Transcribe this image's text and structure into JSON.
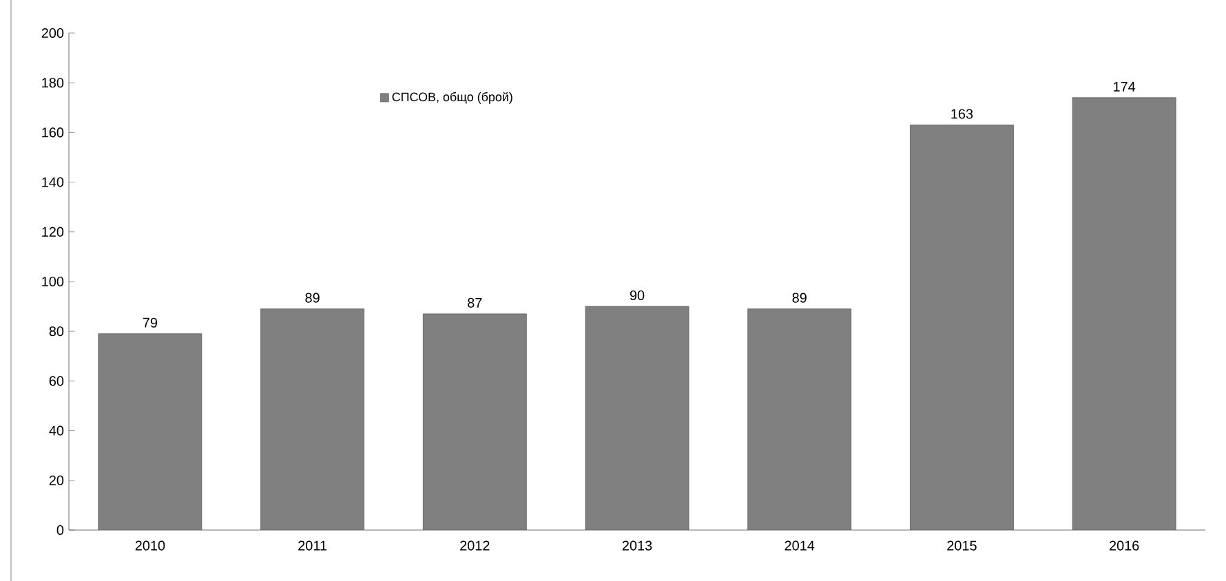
{
  "chart_data": {
    "type": "bar",
    "categories": [
      "2010",
      "2011",
      "2012",
      "2013",
      "2014",
      "2015",
      "2016"
    ],
    "series": [
      {
        "name": "СПСОВ, общо (брой)",
        "color": "#808080",
        "values": [
          79,
          89,
          87,
          90,
          89,
          163,
          174
        ]
      }
    ],
    "ylim": [
      0,
      200
    ],
    "yticks": [
      0,
      20,
      40,
      60,
      80,
      100,
      120,
      140,
      160,
      180,
      200
    ],
    "data_labels": true,
    "legend": "top left",
    "grid": false
  }
}
